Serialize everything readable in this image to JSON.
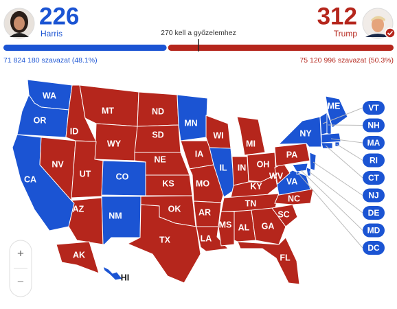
{
  "header": {
    "left": {
      "votes": 226,
      "name": "Harris",
      "popular": "71 824 180 szavazat (48.1%)",
      "color": "#1b54d3"
    },
    "right": {
      "votes": 312,
      "name": "Trump",
      "popular": "75 120 996 szavazat (50.3%)",
      "color": "#b5261c"
    },
    "threshold": "270 kell a győzelemhez"
  },
  "map": {
    "states": [
      {
        "label": "WA",
        "color": "#1b54d3"
      },
      {
        "label": "OR",
        "color": "#1b54d3"
      },
      {
        "label": "CA",
        "color": "#1b54d3"
      },
      {
        "label": "NV",
        "color": "#b5261c"
      },
      {
        "label": "ID",
        "color": "#b5261c"
      },
      {
        "label": "MT",
        "color": "#b5261c"
      },
      {
        "label": "WY",
        "color": "#b5261c"
      },
      {
        "label": "UT",
        "color": "#b5261c"
      },
      {
        "label": "AZ",
        "color": "#b5261c"
      },
      {
        "label": "CO",
        "color": "#1b54d3"
      },
      {
        "label": "NM",
        "color": "#1b54d3"
      },
      {
        "label": "ND",
        "color": "#b5261c"
      },
      {
        "label": "SD",
        "color": "#b5261c"
      },
      {
        "label": "NE",
        "color": "#b5261c"
      },
      {
        "label": "KS",
        "color": "#b5261c"
      },
      {
        "label": "OK",
        "color": "#b5261c"
      },
      {
        "label": "TX",
        "color": "#b5261c"
      },
      {
        "label": "MN",
        "color": "#1b54d3"
      },
      {
        "label": "IA",
        "color": "#b5261c"
      },
      {
        "label": "MO",
        "color": "#b5261c"
      },
      {
        "label": "AR",
        "color": "#b5261c"
      },
      {
        "label": "LA",
        "color": "#b5261c"
      },
      {
        "label": "WI",
        "color": "#b5261c"
      },
      {
        "label": "IL",
        "color": "#1b54d3"
      },
      {
        "label": "MI",
        "color": "#b5261c"
      },
      {
        "label": "IN",
        "color": "#b5261c"
      },
      {
        "label": "OH",
        "color": "#b5261c"
      },
      {
        "label": "KY",
        "color": "#b5261c"
      },
      {
        "label": "TN",
        "color": "#b5261c"
      },
      {
        "label": "MS",
        "color": "#b5261c"
      },
      {
        "label": "AL",
        "color": "#b5261c"
      },
      {
        "label": "GA",
        "color": "#b5261c"
      },
      {
        "label": "FL",
        "color": "#b5261c"
      },
      {
        "label": "SC",
        "color": "#b5261c"
      },
      {
        "label": "NC",
        "color": "#b5261c"
      },
      {
        "label": "VA",
        "color": "#1b54d3"
      },
      {
        "label": "WV",
        "color": "#b5261c"
      },
      {
        "label": "PA",
        "color": "#b5261c"
      },
      {
        "label": "NY",
        "color": "#1b54d3"
      },
      {
        "label": "ME",
        "color": "#1b54d3"
      },
      {
        "label": "AK",
        "color": "#b5261c"
      },
      {
        "label": "HI",
        "color": "#1b54d3"
      }
    ],
    "callouts": [
      {
        "label": "VT",
        "color": "#1b54d3"
      },
      {
        "label": "NH",
        "color": "#1b54d3"
      },
      {
        "label": "MA",
        "color": "#1b54d3"
      },
      {
        "label": "RI",
        "color": "#1b54d3"
      },
      {
        "label": "CT",
        "color": "#1b54d3"
      },
      {
        "label": "NJ",
        "color": "#1b54d3"
      },
      {
        "label": "DE",
        "color": "#1b54d3"
      },
      {
        "label": "MD",
        "color": "#1b54d3"
      },
      {
        "label": "DC",
        "color": "#1b54d3"
      }
    ]
  },
  "zoom": {
    "in": "+",
    "out": "−"
  }
}
